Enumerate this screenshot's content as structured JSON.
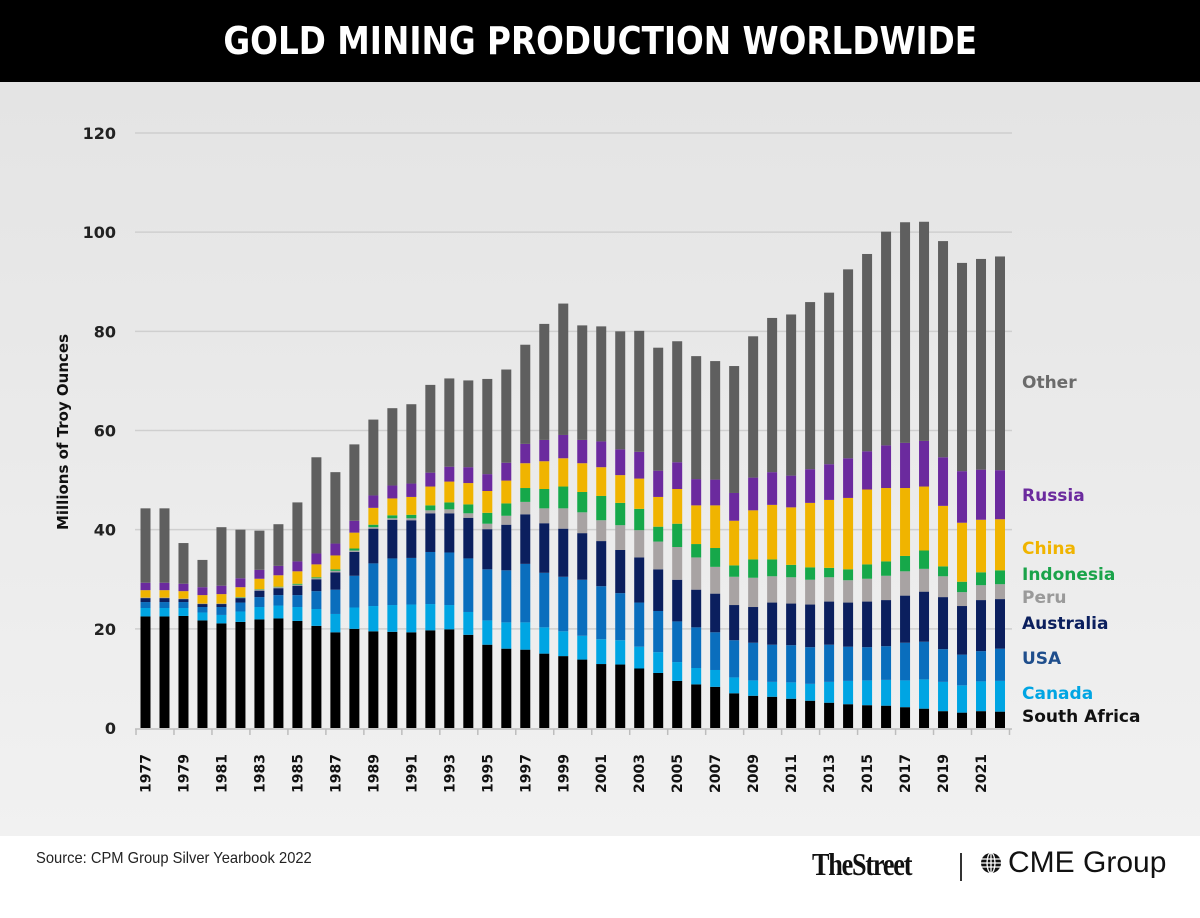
{
  "header": {
    "title": "GOLD MINING PRODUCTION WORLDWIDE"
  },
  "footer": {
    "source": "Source: CPM Group Silver Yearbook 2022",
    "brand_left": "TheStreet",
    "brand_right": "CME Group",
    "brand_right_icon": "globe-icon"
  },
  "chart_data": {
    "type": "bar",
    "stacked": true,
    "title": "GOLD MINING PRODUCTION WORLDWIDE",
    "xlabel": "",
    "ylabel": "Millions of Troy Ounces",
    "ylim": [
      0,
      120
    ],
    "yticks": [
      0,
      20,
      40,
      60,
      80,
      100,
      120
    ],
    "grid": true,
    "legend_placement": "right (inline labels)",
    "categories": [
      "1977",
      "1978",
      "1979",
      "1980",
      "1981",
      "1982",
      "1983",
      "1984",
      "1985",
      "1986",
      "1987",
      "1988",
      "1989",
      "1990",
      "1991",
      "1992",
      "1993",
      "1994",
      "1995",
      "1996",
      "1997",
      "1998",
      "1999",
      "2000",
      "2001",
      "2002",
      "2003",
      "2004",
      "2005",
      "2006",
      "2007",
      "2008",
      "2009",
      "2010",
      "2011",
      "2012",
      "2013",
      "2014",
      "2015",
      "2016",
      "2017",
      "2018",
      "2019",
      "2020",
      "2021",
      "2022"
    ],
    "xtick_labels": [
      "1977",
      "1979",
      "1981",
      "1983",
      "1985",
      "1987",
      "1989",
      "1991",
      "1993",
      "1995",
      "1997",
      "1999",
      "2001",
      "2003",
      "2005",
      "2007",
      "2009",
      "2011",
      "2013",
      "2015",
      "2017",
      "2019",
      "2021"
    ],
    "series": [
      {
        "name": "South Africa",
        "color": "#000000",
        "label_color": "#111111",
        "values": [
          22.5,
          22.5,
          22.6,
          21.7,
          21.1,
          21.4,
          21.9,
          22.1,
          21.6,
          20.6,
          19.3,
          20.0,
          19.5,
          19.4,
          19.3,
          19.7,
          19.9,
          18.8,
          16.8,
          16.0,
          15.8,
          15.0,
          14.5,
          13.8,
          12.9,
          12.8,
          12.0,
          11.1,
          9.5,
          8.8,
          8.3,
          7.0,
          6.5,
          6.3,
          5.9,
          5.5,
          5.1,
          4.8,
          4.6,
          4.5,
          4.2,
          3.9,
          3.4,
          3.1,
          3.4,
          3.3
        ]
      },
      {
        "name": "Canada",
        "color": "#00a5e3",
        "label_color": "#00a5e3",
        "values": [
          1.7,
          1.7,
          1.6,
          1.6,
          1.7,
          2.1,
          2.5,
          2.6,
          2.8,
          3.4,
          3.7,
          4.3,
          5.1,
          5.4,
          5.6,
          5.3,
          4.9,
          4.6,
          4.9,
          5.3,
          5.5,
          5.3,
          5.0,
          4.8,
          5.0,
          4.9,
          4.4,
          4.2,
          3.8,
          3.3,
          3.4,
          3.2,
          3.1,
          3.0,
          3.3,
          3.4,
          4.2,
          4.7,
          5.0,
          5.2,
          5.4,
          5.9,
          5.9,
          5.5,
          6.0,
          6.2
        ]
      },
      {
        "name": "USA",
        "color": "#0a6ebd",
        "label_color": "#1f4e8c",
        "values": [
          1.2,
          1.2,
          1.2,
          1.1,
          1.6,
          1.8,
          2.0,
          2.1,
          2.4,
          3.6,
          4.9,
          6.4,
          8.6,
          9.4,
          9.4,
          10.5,
          10.6,
          10.8,
          10.3,
          10.5,
          11.8,
          11.0,
          11.0,
          11.3,
          10.7,
          9.5,
          8.9,
          8.3,
          8.2,
          8.2,
          7.6,
          7.5,
          7.6,
          7.5,
          7.5,
          7.4,
          7.5,
          6.9,
          6.7,
          6.8,
          7.6,
          7.6,
          6.6,
          6.2,
          6.1,
          6.5
        ]
      },
      {
        "name": "Australia",
        "color": "#0b1f5e",
        "label_color": "#0b1f5e",
        "values": [
          0.8,
          0.8,
          0.6,
          0.6,
          0.6,
          0.9,
          1.3,
          1.4,
          1.9,
          2.4,
          3.5,
          4.8,
          7.0,
          7.8,
          7.6,
          7.8,
          7.9,
          8.2,
          8.1,
          9.2,
          10.0,
          10.0,
          9.7,
          9.4,
          9.1,
          8.7,
          9.1,
          8.4,
          8.4,
          7.6,
          7.8,
          7.1,
          7.2,
          8.5,
          8.4,
          8.6,
          8.7,
          8.9,
          9.2,
          9.3,
          9.5,
          10.1,
          10.5,
          9.8,
          10.3,
          10.0
        ]
      },
      {
        "name": "Peru",
        "color": "#a8a3a3",
        "label_color": "#9a9a9a",
        "values": [
          0.1,
          0.1,
          0.1,
          0.1,
          0.1,
          0.1,
          0.2,
          0.2,
          0.2,
          0.2,
          0.3,
          0.3,
          0.3,
          0.3,
          0.4,
          0.6,
          0.8,
          0.9,
          1.1,
          1.8,
          2.5,
          3.0,
          4.1,
          4.2,
          4.2,
          5.0,
          5.5,
          5.6,
          6.6,
          6.5,
          5.4,
          5.7,
          5.9,
          5.3,
          5.3,
          5.0,
          4.9,
          4.5,
          4.6,
          4.9,
          4.9,
          4.6,
          4.2,
          2.8,
          3.0,
          3.0
        ]
      },
      {
        "name": "Indonesia",
        "color": "#16a84a",
        "label_color": "#1aa34a",
        "values": [
          0.0,
          0.0,
          0.0,
          0.0,
          0.0,
          0.1,
          0.1,
          0.1,
          0.2,
          0.2,
          0.3,
          0.4,
          0.5,
          0.6,
          0.7,
          1.0,
          1.4,
          1.8,
          2.2,
          2.5,
          2.8,
          3.9,
          4.4,
          4.1,
          4.9,
          4.5,
          4.3,
          3.0,
          4.7,
          2.7,
          3.8,
          2.3,
          3.7,
          3.4,
          2.5,
          2.5,
          1.9,
          2.2,
          2.9,
          2.9,
          3.1,
          3.7,
          2.0,
          2.1,
          2.6,
          2.8
        ]
      },
      {
        "name": "China",
        "color": "#f0b400",
        "label_color": "#f0b400",
        "values": [
          1.5,
          1.5,
          1.5,
          1.7,
          1.9,
          2.0,
          2.1,
          2.3,
          2.5,
          2.6,
          2.8,
          3.2,
          3.4,
          3.4,
          3.6,
          3.8,
          4.2,
          4.3,
          4.4,
          4.6,
          5.0,
          5.6,
          5.7,
          5.8,
          5.8,
          5.6,
          6.1,
          6.0,
          7.0,
          7.8,
          8.6,
          9.0,
          9.9,
          11.0,
          11.6,
          13.0,
          13.7,
          14.4,
          15.1,
          14.8,
          13.7,
          12.9,
          12.2,
          11.9,
          10.6,
          10.3
        ]
      },
      {
        "name": "Russia",
        "color": "#6b2a9e",
        "label_color": "#6b2a9e",
        "values": [
          1.5,
          1.5,
          1.5,
          1.6,
          1.7,
          1.8,
          1.8,
          1.9,
          2.0,
          2.2,
          2.4,
          2.4,
          2.5,
          2.6,
          2.7,
          2.8,
          3.0,
          3.2,
          3.4,
          3.6,
          3.9,
          4.3,
          4.7,
          4.7,
          5.2,
          5.2,
          5.4,
          5.3,
          5.4,
          5.3,
          5.2,
          5.6,
          6.6,
          6.6,
          6.4,
          6.8,
          7.2,
          8.0,
          7.7,
          8.6,
          9.1,
          9.2,
          9.8,
          10.4,
          10.1,
          9.9
        ]
      },
      {
        "name": "Other",
        "color": "#5f5f5f",
        "label_color": "#6b6b6b",
        "values": [
          15.0,
          15.0,
          8.2,
          5.5,
          11.8,
          9.8,
          7.9,
          8.4,
          11.9,
          19.4,
          14.4,
          15.4,
          15.3,
          15.6,
          16.0,
          17.7,
          17.8,
          17.5,
          19.2,
          18.8,
          20.0,
          23.4,
          26.5,
          23.1,
          23.2,
          23.8,
          24.4,
          24.8,
          24.4,
          24.8,
          23.9,
          25.6,
          28.5,
          31.1,
          32.5,
          33.7,
          34.6,
          38.1,
          39.8,
          43.1,
          44.5,
          44.2,
          43.6,
          42.0,
          42.5,
          43.1
        ]
      }
    ]
  }
}
